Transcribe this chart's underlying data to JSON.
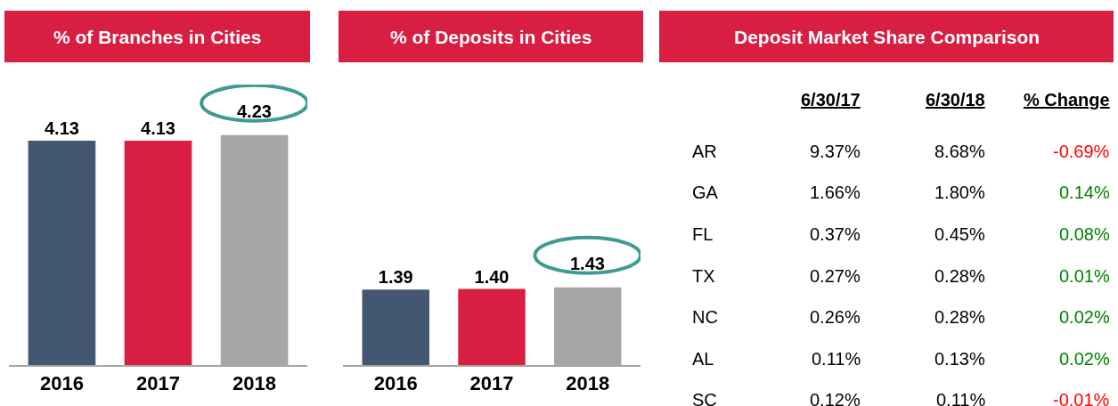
{
  "chart_data": [
    {
      "type": "bar",
      "title": "% of Branches in Cities",
      "categories": [
        "2016",
        "2017",
        "2018"
      ],
      "values": [
        4.13,
        4.13,
        4.23
      ],
      "colors": [
        "#435672",
        "#d81e41",
        "#a6a6a6"
      ],
      "value_labels": [
        "4.13",
        "4.13",
        null
      ],
      "annotations": [
        {
          "text": "4.23",
          "x": "2018",
          "y": 4.23
        }
      ]
    },
    {
      "type": "bar",
      "title": "% of Deposits in Cities",
      "categories": [
        "2016",
        "2017",
        "2018"
      ],
      "values": [
        1.39,
        1.4,
        1.43
      ],
      "colors": [
        "#435672",
        "#d81e41",
        "#a6a6a6"
      ],
      "value_labels": [
        "1.39",
        "1.40",
        null
      ],
      "annotations": [
        {
          "text": "1.43",
          "x": "2018",
          "y": 1.43
        }
      ]
    },
    {
      "type": "other",
      "title": "Deposit Market Share Comparison",
      "categories": [
        "AR",
        "GA",
        "FL",
        "TX",
        "NC",
        "AL",
        "SC"
      ],
      "series": [
        {
          "name": "6/30/17",
          "color": "#000000",
          "values": [
            9.37,
            1.66,
            0.37,
            0.27,
            0.26,
            0.11,
            0.12
          ],
          "value_labels": [
            "9.37%",
            "1.66%",
            "0.37%",
            "0.27%",
            "0.26%",
            "0.11%",
            "0.12%"
          ]
        },
        {
          "name": "6/30/18",
          "color": "#000000",
          "values": [
            8.68,
            1.8,
            0.45,
            0.28,
            0.28,
            0.13,
            0.11
          ],
          "value_labels": [
            "8.68%",
            "1.80%",
            "0.45%",
            "0.28%",
            "0.28%",
            "0.13%",
            "0.11%"
          ]
        },
        {
          "name": "% Change",
          "colors": [
            "#ff0000",
            "#008000",
            "#008000",
            "#008000",
            "#008000",
            "#008000",
            "#ff0000"
          ],
          "values": [
            -0.69,
            0.14,
            0.08,
            0.01,
            0.02,
            0.02,
            -0.01
          ],
          "value_labels": [
            "-0.69%",
            "0.14%",
            "0.08%",
            "0.01%",
            "0.02%",
            "0.02%",
            "-0.01%"
          ]
        }
      ]
    }
  ]
}
